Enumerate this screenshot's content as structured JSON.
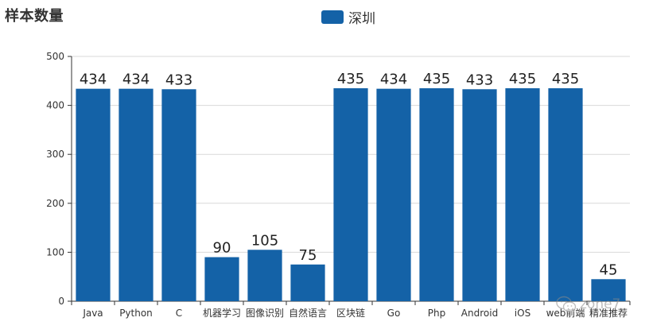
{
  "chart_data": {
    "type": "bar",
    "title": "样本数量",
    "categories": [
      "Java",
      "Python",
      "C",
      "机器学习",
      "图像识别",
      "自然语言",
      "区块链",
      "Go",
      "Php",
      "Android",
      "iOS",
      "web前端",
      "精准推荐"
    ],
    "series": [
      {
        "name": "深圳",
        "color": "#1462a7",
        "values": [
          434,
          434,
          433,
          90,
          105,
          75,
          435,
          434,
          435,
          433,
          435,
          435,
          45
        ]
      }
    ],
    "ylim": [
      0,
      500
    ],
    "yticks": [
      0,
      100,
      200,
      300,
      400,
      500
    ],
    "grid": true,
    "legend_position": "top-center",
    "xlabel": "",
    "ylabel": ""
  },
  "watermark": {
    "text": "zone7",
    "icon": "wechat-icon"
  }
}
